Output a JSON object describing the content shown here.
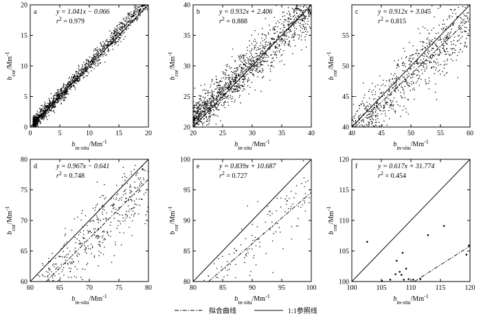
{
  "figure": {
    "legend": {
      "fit_line_label": "拟合曲线",
      "ref_line_label": "1:1参照线"
    }
  },
  "chart_data": [
    {
      "type": "scatter",
      "panel": "a",
      "xlabel": "b_in-situ/Mm^-1",
      "ylabel": "b_cor/Mm^-1",
      "xlim": [
        0,
        20
      ],
      "ylim": [
        0,
        20
      ],
      "xticks": [
        0,
        5,
        10,
        15,
        20
      ],
      "yticks": [
        0,
        5,
        10,
        15,
        20
      ],
      "equation": "y = 1.041x − 0.066",
      "r2_label": "r² = 0.979",
      "fit": {
        "slope": 1.041,
        "intercept": -0.066
      },
      "points": {
        "n": 1400,
        "xmin": 0.5,
        "xmax": 20,
        "skew": 1.9,
        "noise_sd": 0.75
      }
    },
    {
      "type": "scatter",
      "panel": "b",
      "xlabel": "b_in-situ/Mm^-1",
      "ylabel": "b_cor/Mm^-1",
      "xlim": [
        20,
        40
      ],
      "ylim": [
        20,
        40
      ],
      "xticks": [
        20,
        25,
        30,
        35,
        40
      ],
      "yticks": [
        20,
        25,
        30,
        35,
        40
      ],
      "equation": "y = 0.932x + 2.406",
      "r2_label": "r² = 0.888",
      "fit": {
        "slope": 0.932,
        "intercept": 2.406
      },
      "points": {
        "n": 1400,
        "xmin": 20,
        "xmax": 40,
        "skew": 1.3,
        "noise_sd": 1.9
      }
    },
    {
      "type": "scatter",
      "panel": "c",
      "xlabel": "b_in-situ/Mm^-1",
      "ylabel": "b_cor/Mm^-1",
      "xlim": [
        40,
        60
      ],
      "ylim": [
        40,
        60
      ],
      "xticks": [
        40,
        45,
        50,
        55,
        60
      ],
      "yticks": [
        40,
        45,
        50,
        55
      ],
      "equation": "y = 0.912x + 3.045",
      "r2_label": "r² = 0.815",
      "fit": {
        "slope": 0.912,
        "intercept": 3.045
      },
      "points": {
        "n": 800,
        "xmin": 40,
        "xmax": 60,
        "skew": 1.0,
        "noise_sd": 2.6
      }
    },
    {
      "type": "scatter",
      "panel": "d",
      "xlabel": "b_in-situ/Mm^-1",
      "ylabel": "b_cor/Mm^-1",
      "xlim": [
        60,
        80
      ],
      "ylim": [
        60,
        80
      ],
      "xticks": [
        60,
        65,
        70,
        75,
        80
      ],
      "yticks": [
        60,
        65,
        70,
        75,
        80
      ],
      "equation": "y = 0.967x − 0.641",
      "r2_label": "r² = 0.748",
      "fit": {
        "slope": 0.967,
        "intercept": -0.641
      },
      "points": {
        "n": 430,
        "xmin": 61,
        "xmax": 80,
        "skew": 1.0,
        "noise_sd": 2.8
      }
    },
    {
      "type": "scatter",
      "panel": "e",
      "xlabel": "b_in-situ/Mm^-1",
      "ylabel": "b_cor/Mm^-1",
      "xlim": [
        80,
        100
      ],
      "ylim": [
        80,
        100
      ],
      "xticks": [
        80,
        85,
        90,
        95,
        100
      ],
      "yticks": [
        80,
        85,
        90,
        95,
        100
      ],
      "equation": "y = 0.839x + 10.687",
      "r2_label": "r² = 0.727",
      "fit": {
        "slope": 0.839,
        "intercept": 10.687
      },
      "points": {
        "n": 130,
        "xmin": 81,
        "xmax": 100,
        "skew": 0.8,
        "noise_sd": 2.4
      }
    },
    {
      "type": "scatter",
      "panel": "f",
      "xlabel": "b_in-situ/Mm^-1",
      "ylabel": "b_cor/Mm^-1",
      "xlim": [
        100,
        120
      ],
      "ylim": [
        100,
        120
      ],
      "xticks": [
        100,
        105,
        110,
        115,
        120
      ],
      "yticks": [
        100,
        105,
        110,
        115,
        120
      ],
      "equation": "y = 0.617x + 31.774",
      "r2_label": "r² = 0.454",
      "fit": {
        "slope": 0.617,
        "intercept": 31.774
      },
      "points_list": [
        [
          102.6,
          106.5
        ],
        [
          105.1,
          100.1
        ],
        [
          106.5,
          100.3
        ],
        [
          107.4,
          101.2
        ],
        [
          107.6,
          103.4
        ],
        [
          108.1,
          101.6
        ],
        [
          108.4,
          101.1
        ],
        [
          108.6,
          104.7
        ],
        [
          108.8,
          100.3
        ],
        [
          109.2,
          102.1
        ],
        [
          109.6,
          100.4
        ],
        [
          110.4,
          100.3
        ],
        [
          111.6,
          100.4
        ],
        [
          112.9,
          107.6
        ],
        [
          115.6,
          109.1
        ],
        [
          119.4,
          104.4
        ],
        [
          119.8,
          105.9
        ]
      ]
    }
  ]
}
